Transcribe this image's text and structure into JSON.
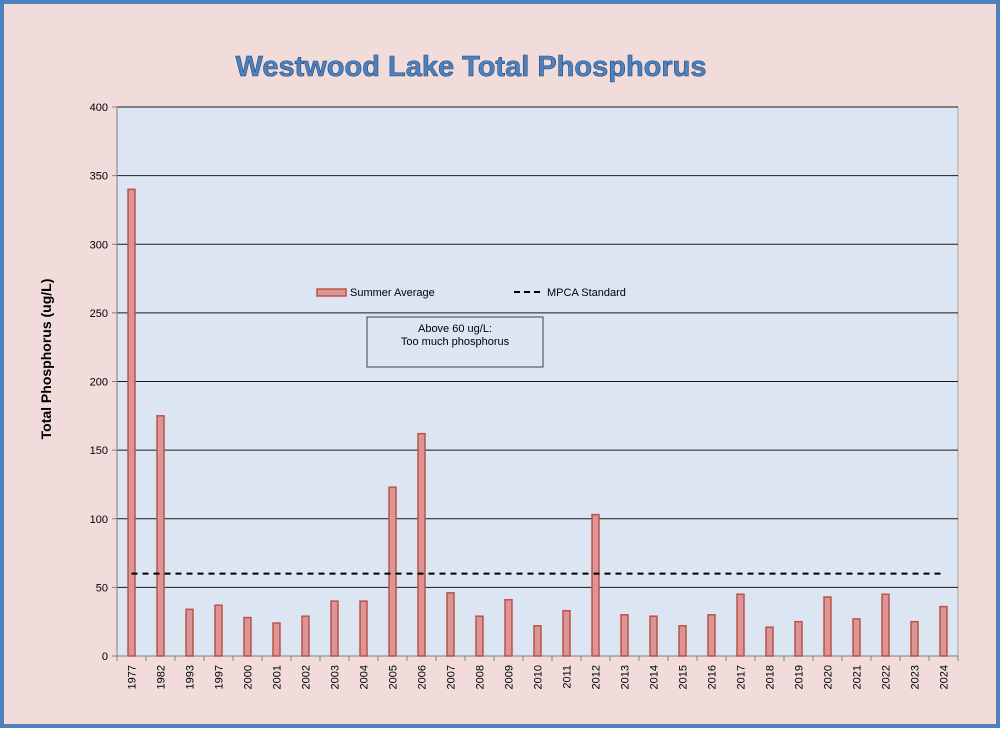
{
  "chart_data": {
    "type": "bar",
    "title": "Westwood Lake Total Phosphorus",
    "ylabel": "Total Phosphorus (ug/L)",
    "xlabel": "",
    "ylim": [
      0,
      400
    ],
    "yticks": [
      0,
      50,
      100,
      150,
      200,
      250,
      300,
      350,
      400
    ],
    "grid": true,
    "categories": [
      "1977",
      "1982",
      "1993",
      "1997",
      "2000",
      "2001",
      "2002",
      "2003",
      "2004",
      "2005",
      "2006",
      "2007",
      "2008",
      "2009",
      "2010",
      "2011",
      "2012",
      "2013",
      "2014",
      "2015",
      "2016",
      "2017",
      "2018",
      "2019",
      "2020",
      "2021",
      "2022",
      "2023",
      "2024"
    ],
    "series": [
      {
        "name": "Summer Average",
        "type": "bar",
        "color": "#d99694",
        "stroke": "#c0504d",
        "values": [
          340,
          175,
          34,
          37,
          28,
          24,
          29,
          40,
          40,
          123,
          162,
          46,
          29,
          41,
          22,
          33,
          103,
          30,
          29,
          22,
          30,
          45,
          21,
          25,
          43,
          27,
          45,
          25,
          36
        ]
      },
      {
        "name": "MPCA Standard",
        "type": "line",
        "style": "dashed",
        "color": "#000000",
        "value": 60
      }
    ],
    "legend_position": "top-center",
    "annotation": {
      "lines": [
        "Above 60 ug/L:",
        "Too much phosphorus"
      ]
    },
    "colors": {
      "outer_background": "#f2dcdb",
      "frame_border": "#4f81bd",
      "plot_background": "#dce6f2",
      "title_fill": "#4f81bd"
    }
  }
}
